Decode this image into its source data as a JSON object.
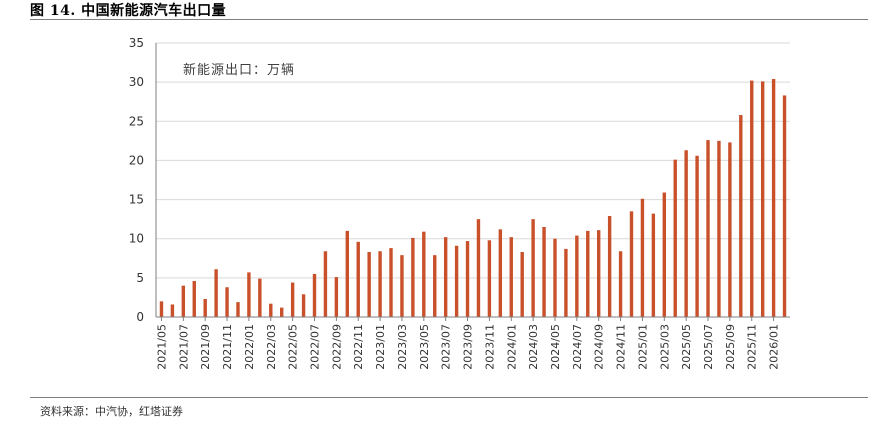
{
  "figure": {
    "title": "图 14. 中国新能源汽车出口量",
    "source": "资料来源：中汽协，红塔证券"
  },
  "chart_data": {
    "type": "bar",
    "title": "",
    "xlabel": "",
    "ylabel": "",
    "annotation": "新能源出口：万辆",
    "ylim": [
      0,
      35
    ],
    "yticks": [
      0,
      5,
      10,
      15,
      20,
      25,
      30,
      35
    ],
    "grid": true,
    "legend": "none",
    "bar_color": "#c8502a",
    "categories": [
      "2021/05",
      "2021/06",
      "2021/07",
      "2021/08",
      "2021/09",
      "2021/10",
      "2021/11",
      "2021/12",
      "2022/01",
      "2022/02",
      "2022/03",
      "2022/04",
      "2022/05",
      "2022/06",
      "2022/07",
      "2022/08",
      "2022/09",
      "2022/10",
      "2022/11",
      "2022/12",
      "2023/01",
      "2023/02",
      "2023/03",
      "2023/04",
      "2023/05",
      "2023/06",
      "2023/07",
      "2023/08",
      "2023/09",
      "2023/10",
      "2023/11",
      "2023/12",
      "2024/01",
      "2024/02",
      "2024/03",
      "2024/04",
      "2024/05",
      "2024/06",
      "2024/07",
      "2024/08",
      "2024/09",
      "2024/10",
      "2024/11",
      "2024/12",
      "2025/01",
      "2025/02",
      "2025/03",
      "2025/04",
      "2025/05",
      "2025/06",
      "2025/07",
      "2025/08",
      "2025/09",
      "2025/10",
      "2025/11",
      "2025/12",
      "2026/01",
      "2026/02"
    ],
    "tick_labels": [
      "2021/05",
      "2021/07",
      "2021/09",
      "2021/11",
      "2022/01",
      "2022/03",
      "2022/05",
      "2022/07",
      "2022/09",
      "2022/11",
      "2023/01",
      "2023/03",
      "2023/05",
      "2023/07",
      "2023/09",
      "2023/11",
      "2024/01",
      "2024/03",
      "2024/05",
      "2024/07",
      "2024/09",
      "2024/11",
      "2025/01",
      "2025/03",
      "2025/05",
      "2025/07",
      "2025/09",
      "2025/11",
      "2026/01"
    ],
    "values": [
      2.0,
      1.6,
      4.0,
      4.6,
      2.3,
      6.1,
      3.8,
      1.9,
      5.7,
      4.9,
      1.7,
      1.2,
      4.4,
      2.9,
      5.5,
      8.4,
      5.1,
      11.0,
      9.6,
      8.3,
      8.4,
      8.8,
      7.9,
      10.1,
      10.9,
      7.9,
      10.2,
      9.1,
      9.7,
      12.5,
      9.8,
      11.2,
      10.2,
      8.3,
      12.5,
      11.5,
      10.0,
      8.7,
      10.4,
      11.0,
      11.1,
      12.9,
      8.4,
      13.5,
      15.1,
      13.2,
      15.9,
      20.1,
      21.3,
      20.6,
      22.6,
      22.5,
      22.3,
      25.8,
      30.2,
      30.1,
      30.4,
      28.3
    ]
  }
}
